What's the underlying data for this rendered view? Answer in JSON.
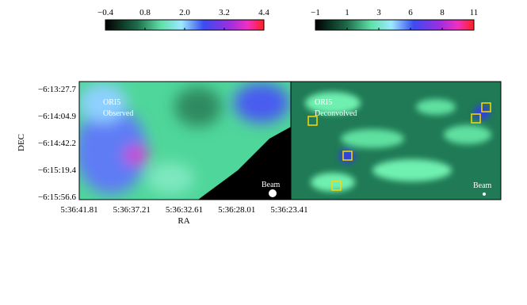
{
  "colorbars": [
    {
      "ticks": [
        "−0.4",
        "0.8",
        "2.0",
        "3.2",
        "4.4"
      ]
    },
    {
      "ticks": [
        "−1",
        "1",
        "3",
        "6",
        "8",
        "11"
      ]
    }
  ],
  "panels": [
    {
      "label": "ORI5",
      "sublabel": "Observed",
      "beam": "Beam"
    },
    {
      "label": "ORI5",
      "sublabel": "Deconvolved",
      "beam": "Beam"
    }
  ],
  "y_axis": {
    "label": "DEC",
    "ticks": [
      "−6:13:27.7",
      "−6:14:04.9",
      "−6:14:42.2",
      "−6:15:19.4",
      "−6:15:56.6"
    ]
  },
  "x_axis": {
    "label": "RA",
    "ticks": [
      "5:36:41.81",
      "5:36:37.21",
      "5:36:32.61",
      "5:36:28.01",
      "5:36:23.41"
    ]
  }
}
